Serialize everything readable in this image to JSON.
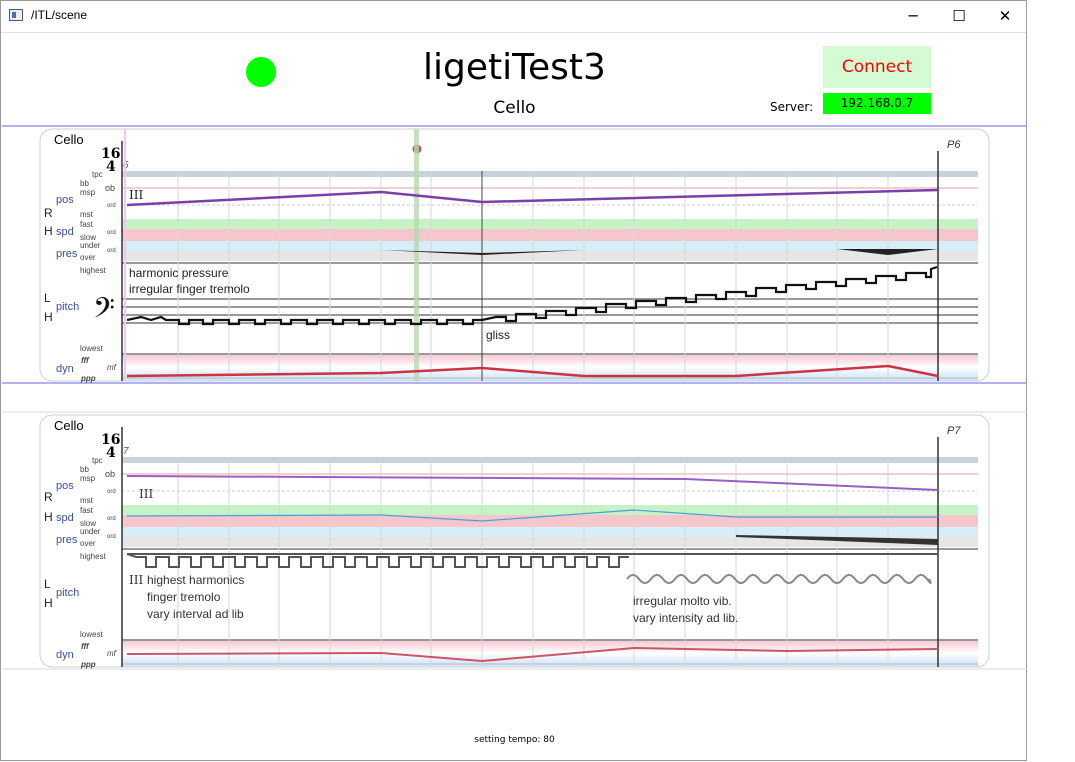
{
  "window": {
    "title": "/ITL/scene",
    "minimize_glyph": "─",
    "maximize_glyph": "☐",
    "close_glyph": "✕"
  },
  "header": {
    "score_title": "ligetiTest3",
    "part_name": "Cello",
    "connect_label": "Connect",
    "server_label": "Server:",
    "server_ip": "192.168.0.7",
    "status_color": "#00ff00"
  },
  "score_labels": {
    "rh": [
      "R",
      "H"
    ],
    "lh": [
      "L",
      "H"
    ],
    "pos": "pos",
    "spd": "spd",
    "pres": "pres",
    "pitch": "pitch",
    "dyn": "dyn",
    "tpc": "tpc",
    "bb": "bb",
    "msp": "msp",
    "ob": "ob",
    "ord": "ord",
    "mst": "mst",
    "fast": "fast",
    "slow": "slow",
    "under": "under",
    "over": "over",
    "highest": "highest",
    "lowest": "lowest",
    "fff": "fff",
    "mf": "mf",
    "ppp": "ppp",
    "time_sig_num": "16",
    "time_sig_den": "4"
  },
  "pages": [
    {
      "instrument": "Cello",
      "page": "P6",
      "measure": "6",
      "string": "III",
      "annotations": [
        "harmonic pressure",
        "irregular finger tremolo",
        "gliss"
      ]
    },
    {
      "instrument": "Cello",
      "page": "P7",
      "measure": "7",
      "string": "III",
      "annotations": [
        "highest harmonics",
        "finger tremolo",
        "vary interval ad lib",
        "irregular molto vib.",
        "vary intensity ad lib."
      ]
    }
  ],
  "status": {
    "tempo_text": "setting tempo: 80"
  },
  "colors": {
    "pos_line": "#7b3fa8",
    "spd_line": "#4aa0d8",
    "dyn_line": "#cc3344",
    "label_blue": "#3a4fa0",
    "cursor": "#b8d8b0",
    "playhead": "#c0504d",
    "divider": "#9999ee"
  }
}
